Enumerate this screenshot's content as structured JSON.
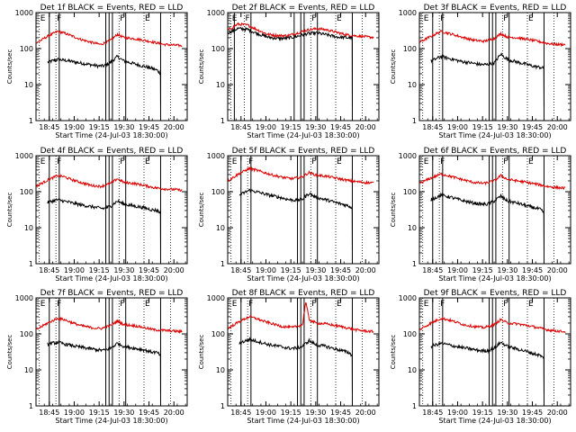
{
  "figure": {
    "common": {
      "type": "line",
      "ylabel": "Counts/sec",
      "xlabel": "Start Time (24-Jul-03 18:30:00)",
      "xlim": [
        "18:37",
        "20:08"
      ],
      "ylim": [
        1,
        1000
      ],
      "yscale": "log",
      "x_tick_labels": [
        "18:45",
        "19:00",
        "19:15",
        "19:30",
        "19:45",
        "20:00"
      ],
      "y_tick_labels": [
        "1",
        "10",
        "100",
        "1000"
      ],
      "marker_labels": [
        "E",
        "F",
        "F",
        "E"
      ],
      "series_colors": {
        "events": "#000000",
        "lld": "#dd0000"
      }
    }
  },
  "chart_data": [
    {
      "type": "line",
      "title": "Det 1f BLACK = Events, RED = LLD",
      "xlabel": "Start Time (24-Jul-03 18:30:00)",
      "ylabel": "Counts/sec",
      "series": [
        {
          "name": "Events",
          "color": "#000000",
          "x": [
            "18:44",
            "18:50",
            "18:56",
            "19:02",
            "19:08",
            "19:14",
            "19:18",
            "19:22",
            "19:26",
            "19:30",
            "19:36",
            "19:42",
            "19:46",
            "19:50",
            "19:52"
          ],
          "values": [
            42,
            50,
            46,
            41,
            37,
            33,
            33,
            42,
            60,
            45,
            38,
            32,
            29,
            25,
            20
          ]
        },
        {
          "name": "LLD",
          "color": "#dd0000",
          "x": [
            "18:37",
            "18:44",
            "18:50",
            "18:54",
            "18:58",
            "19:04",
            "19:10",
            "19:16",
            "19:22",
            "19:26",
            "19:30",
            "19:36",
            "19:42",
            "19:48",
            "19:54",
            "20:00",
            "20:05"
          ],
          "values": [
            140,
            220,
            300,
            270,
            230,
            180,
            150,
            130,
            170,
            250,
            200,
            190,
            170,
            150,
            130,
            125,
            120
          ]
        }
      ],
      "vlines_solid": [
        "18:45",
        "18:51",
        "19:19",
        "19:21",
        "19:23",
        "19:31",
        "19:52"
      ],
      "vlines_dotted": [
        "18:39",
        "18:49",
        "19:27",
        "19:42",
        "19:58"
      ]
    },
    {
      "type": "line",
      "title": "Det 2f BLACK = Events, RED = LLD",
      "xlabel": "Start Time (24-Jul-03 18:30:00)",
      "ylabel": "Counts/sec",
      "series": [
        {
          "name": "Events",
          "color": "#000000",
          "x": [
            "18:37",
            "18:43",
            "18:49",
            "18:55",
            "19:01",
            "19:07",
            "19:13",
            "19:19",
            "19:25",
            "19:31",
            "19:37",
            "19:43",
            "19:49",
            "19:52"
          ],
          "values": [
            270,
            360,
            340,
            260,
            210,
            190,
            195,
            220,
            260,
            270,
            240,
            210,
            200,
            200
          ]
        },
        {
          "name": "LLD",
          "color": "#dd0000",
          "x": [
            "18:37",
            "18:43",
            "18:49",
            "18:55",
            "19:01",
            "19:07",
            "19:13",
            "19:19",
            "19:25",
            "19:31",
            "19:37",
            "19:43",
            "19:49",
            "19:55",
            "20:01",
            "20:05"
          ],
          "values": [
            320,
            480,
            450,
            330,
            250,
            230,
            230,
            270,
            330,
            360,
            330,
            280,
            240,
            225,
            210,
            205
          ]
        }
      ],
      "vlines_solid": [
        "18:41",
        "18:51",
        "19:17",
        "19:21",
        "19:23",
        "19:31",
        "19:52"
      ],
      "vlines_dotted": [
        "18:39",
        "18:47",
        "19:27",
        "19:42",
        "19:58"
      ]
    },
    {
      "type": "line",
      "title": "Det 3f BLACK = Events, RED = LLD",
      "xlabel": "Start Time (24-Jul-03 18:30:00)",
      "ylabel": "Counts/sec",
      "series": [
        {
          "name": "Events",
          "color": "#000000",
          "x": [
            "18:44",
            "18:50",
            "18:56",
            "19:02",
            "19:08",
            "19:14",
            "19:18",
            "19:22",
            "19:26",
            "19:30",
            "19:36",
            "19:42",
            "19:46",
            "19:50",
            "19:52"
          ],
          "values": [
            45,
            60,
            52,
            44,
            40,
            36,
            36,
            40,
            70,
            50,
            42,
            36,
            32,
            30,
            28
          ]
        },
        {
          "name": "LLD",
          "color": "#dd0000",
          "x": [
            "18:37",
            "18:44",
            "18:50",
            "18:54",
            "18:58",
            "19:04",
            "19:10",
            "19:16",
            "19:22",
            "19:26",
            "19:30",
            "19:36",
            "19:42",
            "19:48",
            "19:54",
            "20:00",
            "20:05"
          ],
          "values": [
            150,
            220,
            300,
            270,
            240,
            200,
            170,
            160,
            190,
            260,
            210,
            200,
            180,
            160,
            140,
            130,
            130
          ]
        }
      ],
      "vlines_solid": [
        "18:45",
        "18:51",
        "19:19",
        "19:21",
        "19:23",
        "19:31",
        "19:52"
      ],
      "vlines_dotted": [
        "18:39",
        "18:49",
        "19:27",
        "19:42",
        "19:58"
      ]
    },
    {
      "type": "line",
      "title": "Det 4f BLACK = Events, RED = LLD",
      "xlabel": "Start Time (24-Jul-03 18:30:00)",
      "ylabel": "Counts/sec",
      "series": [
        {
          "name": "Events",
          "color": "#000000",
          "x": [
            "18:44",
            "18:50",
            "18:56",
            "19:02",
            "19:08",
            "19:14",
            "19:18",
            "19:22",
            "19:26",
            "19:30",
            "19:36",
            "19:42",
            "19:46",
            "19:50",
            "19:52"
          ],
          "values": [
            50,
            60,
            52,
            45,
            40,
            36,
            34,
            40,
            55,
            45,
            40,
            36,
            32,
            30,
            25
          ]
        },
        {
          "name": "LLD",
          "color": "#dd0000",
          "x": [
            "18:37",
            "18:44",
            "18:50",
            "18:54",
            "18:58",
            "19:04",
            "19:10",
            "19:16",
            "19:22",
            "19:26",
            "19:30",
            "19:36",
            "19:42",
            "19:48",
            "19:54",
            "20:00",
            "20:05"
          ],
          "values": [
            140,
            210,
            280,
            260,
            220,
            180,
            150,
            140,
            170,
            230,
            180,
            170,
            150,
            130,
            120,
            115,
            110
          ]
        }
      ],
      "vlines_solid": [
        "18:45",
        "18:51",
        "19:19",
        "19:21",
        "19:23",
        "19:31",
        "19:52"
      ],
      "vlines_dotted": [
        "18:39",
        "18:49",
        "19:27",
        "19:42",
        "19:58"
      ]
    },
    {
      "type": "line",
      "title": "Det 5f BLACK = Events, RED = LLD",
      "xlabel": "Start Time (24-Jul-03 18:30:00)",
      "ylabel": "Counts/sec",
      "series": [
        {
          "name": "Events",
          "color": "#000000",
          "x": [
            "18:44",
            "18:50",
            "18:56",
            "19:02",
            "19:08",
            "19:14",
            "19:18",
            "19:22",
            "19:26",
            "19:30",
            "19:36",
            "19:42",
            "19:46",
            "19:50",
            "19:52"
          ],
          "values": [
            80,
            110,
            95,
            80,
            70,
            60,
            58,
            62,
            90,
            70,
            60,
            50,
            45,
            40,
            35
          ]
        },
        {
          "name": "LLD",
          "color": "#dd0000",
          "x": [
            "18:37",
            "18:44",
            "18:50",
            "18:54",
            "18:58",
            "19:04",
            "19:10",
            "19:16",
            "19:22",
            "19:26",
            "19:30",
            "19:36",
            "19:42",
            "19:48",
            "19:54",
            "20:00",
            "20:05"
          ],
          "values": [
            200,
            320,
            440,
            400,
            350,
            290,
            250,
            230,
            260,
            340,
            290,
            270,
            240,
            210,
            190,
            180,
            175
          ]
        }
      ],
      "vlines_solid": [
        "18:45",
        "18:51",
        "19:19",
        "19:21",
        "19:23",
        "19:31",
        "19:52"
      ],
      "vlines_dotted": [
        "18:39",
        "18:49",
        "19:27",
        "19:42",
        "19:58"
      ]
    },
    {
      "type": "line",
      "title": "Det 6f BLACK = Events, RED = LLD",
      "xlabel": "Start Time (24-Jul-03 18:30:00)",
      "ylabel": "Counts/sec",
      "series": [
        {
          "name": "Events",
          "color": "#000000",
          "x": [
            "18:44",
            "18:50",
            "18:56",
            "19:02",
            "19:08",
            "19:14",
            "19:18",
            "19:22",
            "19:26",
            "19:30",
            "19:36",
            "19:42",
            "19:46",
            "19:50",
            "19:52"
          ],
          "values": [
            60,
            80,
            70,
            58,
            50,
            45,
            45,
            55,
            75,
            55,
            48,
            40,
            36,
            32,
            25
          ]
        },
        {
          "name": "LLD",
          "color": "#dd0000",
          "x": [
            "18:37",
            "18:44",
            "18:50",
            "18:54",
            "18:58",
            "19:04",
            "19:10",
            "19:16",
            "19:22",
            "19:26",
            "19:30",
            "19:36",
            "19:42",
            "19:48",
            "19:54",
            "20:00",
            "20:05"
          ],
          "values": [
            170,
            240,
            310,
            280,
            250,
            210,
            180,
            170,
            200,
            280,
            220,
            200,
            180,
            160,
            140,
            130,
            125
          ]
        }
      ],
      "vlines_solid": [
        "18:45",
        "18:51",
        "19:19",
        "19:21",
        "19:23",
        "19:31",
        "19:52"
      ],
      "vlines_dotted": [
        "18:39",
        "18:49",
        "19:27",
        "19:42",
        "19:58"
      ]
    },
    {
      "type": "line",
      "title": "Det 7f BLACK = Events, RED = LLD",
      "xlabel": "Start Time (24-Jul-03 18:30:00)",
      "ylabel": "Counts/sec",
      "series": [
        {
          "name": "Events",
          "color": "#000000",
          "x": [
            "18:44",
            "18:50",
            "18:56",
            "19:02",
            "19:08",
            "19:14",
            "19:18",
            "19:22",
            "19:26",
            "19:30",
            "19:36",
            "19:42",
            "19:46",
            "19:50",
            "19:52"
          ],
          "values": [
            52,
            58,
            50,
            44,
            40,
            36,
            35,
            40,
            55,
            45,
            40,
            36,
            32,
            30,
            25
          ]
        },
        {
          "name": "LLD",
          "color": "#dd0000",
          "x": [
            "18:37",
            "18:44",
            "18:50",
            "18:54",
            "18:58",
            "19:04",
            "19:10",
            "19:16",
            "19:22",
            "19:26",
            "19:30",
            "19:36",
            "19:42",
            "19:48",
            "19:54",
            "20:00",
            "20:05"
          ],
          "values": [
            130,
            200,
            270,
            250,
            210,
            170,
            150,
            140,
            170,
            230,
            180,
            170,
            150,
            130,
            125,
            120,
            115
          ]
        }
      ],
      "vlines_solid": [
        "18:45",
        "18:51",
        "19:19",
        "19:21",
        "19:23",
        "19:31",
        "19:52"
      ],
      "vlines_dotted": [
        "18:39",
        "18:49",
        "19:27",
        "19:42",
        "19:58"
      ]
    },
    {
      "type": "line",
      "title": "Det 8f BLACK = Events, RED = LLD",
      "xlabel": "Start Time (24-Jul-03 18:30:00)",
      "ylabel": "Counts/sec",
      "series": [
        {
          "name": "Events",
          "color": "#000000",
          "x": [
            "18:44",
            "18:50",
            "18:56",
            "19:02",
            "19:08",
            "19:14",
            "19:18",
            "19:22",
            "19:26",
            "19:30",
            "19:36",
            "19:42",
            "19:46",
            "19:50",
            "19:52"
          ],
          "values": [
            55,
            70,
            60,
            50,
            45,
            40,
            40,
            45,
            65,
            50,
            45,
            38,
            34,
            30,
            25
          ]
        },
        {
          "name": "LLD",
          "color": "#dd0000",
          "x": [
            "18:37",
            "18:44",
            "18:50",
            "18:54",
            "18:58",
            "19:04",
            "19:10",
            "19:16",
            "19:22",
            "19:24",
            "19:26",
            "19:30",
            "19:36",
            "19:42",
            "19:48",
            "19:54",
            "20:00",
            "20:05"
          ],
          "values": [
            140,
            220,
            300,
            270,
            230,
            190,
            160,
            150,
            180,
            800,
            250,
            200,
            190,
            170,
            150,
            130,
            120,
            115
          ]
        }
      ],
      "vlines_solid": [
        "18:45",
        "18:51",
        "19:19",
        "19:21",
        "19:23",
        "19:31",
        "19:52"
      ],
      "vlines_dotted": [
        "18:39",
        "18:49",
        "19:27",
        "19:42",
        "19:58"
      ]
    },
    {
      "type": "line",
      "title": "Det 9f BLACK = Events, RED = LLD",
      "xlabel": "Start Time (24-Jul-03 18:30:00)",
      "ylabel": "Counts/sec",
      "series": [
        {
          "name": "Events",
          "color": "#000000",
          "x": [
            "18:44",
            "18:50",
            "18:56",
            "19:02",
            "19:08",
            "19:14",
            "19:18",
            "19:22",
            "19:26",
            "19:30",
            "19:36",
            "19:42",
            "19:46",
            "19:50",
            "19:52"
          ],
          "values": [
            45,
            55,
            48,
            42,
            38,
            34,
            34,
            40,
            58,
            45,
            38,
            32,
            28,
            25,
            20
          ]
        },
        {
          "name": "LLD",
          "color": "#dd0000",
          "x": [
            "18:37",
            "18:44",
            "18:50",
            "18:54",
            "18:58",
            "19:04",
            "19:10",
            "19:16",
            "19:22",
            "19:26",
            "19:30",
            "19:36",
            "19:42",
            "19:48",
            "19:54",
            "20:00",
            "20:05"
          ],
          "values": [
            130,
            200,
            270,
            250,
            220,
            180,
            160,
            150,
            180,
            250,
            200,
            190,
            170,
            150,
            130,
            120,
            115
          ]
        }
      ],
      "vlines_solid": [
        "18:45",
        "18:51",
        "19:19",
        "19:21",
        "19:23",
        "19:31",
        "19:52"
      ],
      "vlines_dotted": [
        "18:39",
        "18:49",
        "19:27",
        "19:42",
        "19:58"
      ]
    }
  ]
}
